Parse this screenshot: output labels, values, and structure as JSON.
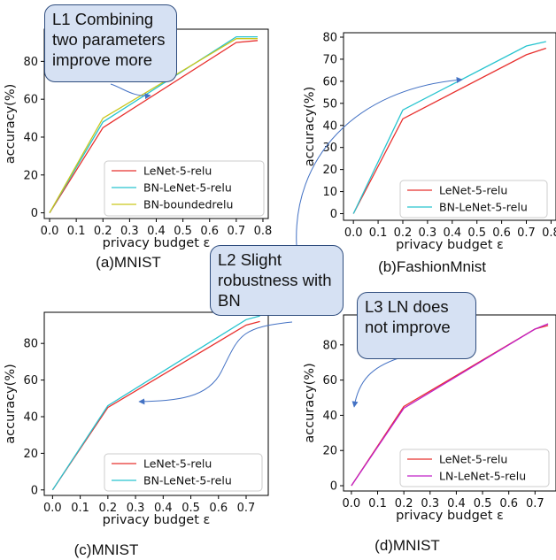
{
  "colors": {
    "lenet": "#e8312f",
    "bn_lenet": "#27c4cf",
    "bn_bounded": "#c9c61c",
    "ln_lenet": "#c020c8",
    "callout_fill": "#d6e1f3",
    "callout_border": "#2f4d7e",
    "arrow": "#4472c4"
  },
  "callouts": {
    "l1": "L1 Combining two parameters improve more",
    "l2": "L2 Slight robustness with BN",
    "l3": "L3 LN does not improve"
  },
  "chart_data": [
    {
      "id": "a",
      "type": "line",
      "caption": "(a)MNIST",
      "xlabel": "privacy budget ε",
      "ylabel": "accuracy(%)",
      "xlim": [
        -0.02,
        0.82
      ],
      "ylim": [
        -3,
        97
      ],
      "xticks": [
        "0.0",
        "0.1",
        "0.2",
        "0.3",
        "0.4",
        "0.5",
        "0.6",
        "0.7",
        "0.8"
      ],
      "xtick_values": [
        0,
        0.1,
        0.2,
        0.3,
        0.4,
        0.5,
        0.6,
        0.7,
        0.8
      ],
      "yticks": [
        "0",
        "20",
        "40",
        "60",
        "80"
      ],
      "ytick_values": [
        0,
        20,
        40,
        60,
        80
      ],
      "legend_position": "lower-right",
      "series": [
        {
          "name": "LeNet-5-relu",
          "color": "lenet",
          "x": [
            0,
            0.2,
            0.7,
            0.78
          ],
          "y": [
            0,
            45,
            90,
            91
          ]
        },
        {
          "name": "BN-LeNet-5-relu",
          "color": "bn_lenet",
          "x": [
            0,
            0.2,
            0.7,
            0.78
          ],
          "y": [
            0,
            48,
            93,
            93
          ]
        },
        {
          "name": "BN-boundedrelu",
          "color": "bn_bounded",
          "x": [
            0,
            0.2,
            0.7,
            0.78
          ],
          "y": [
            0,
            50,
            92,
            92
          ]
        }
      ]
    },
    {
      "id": "b",
      "type": "line",
      "caption": "(b)FashionMnist",
      "xlabel": "privacy budget ε",
      "ylabel": "accuracy(%)",
      "xlim": [
        -0.04,
        0.82
      ],
      "ylim": [
        -3,
        82
      ],
      "xticks": [
        "0.0",
        "0.1",
        "0.2",
        "0.3",
        "0.4",
        "0.5",
        "0.6",
        "0.7",
        "0.8"
      ],
      "xtick_values": [
        0,
        0.1,
        0.2,
        0.3,
        0.4,
        0.5,
        0.6,
        0.7,
        0.8
      ],
      "yticks": [
        "0",
        "10",
        "20",
        "30",
        "40",
        "50",
        "60",
        "70",
        "80"
      ],
      "ytick_values": [
        0,
        10,
        20,
        30,
        40,
        50,
        60,
        70,
        80
      ],
      "legend_position": "lower-right",
      "series": [
        {
          "name": "LeNet-5-relu",
          "color": "lenet",
          "x": [
            0,
            0.2,
            0.7,
            0.78
          ],
          "y": [
            0,
            43,
            72,
            75
          ]
        },
        {
          "name": "BN-LeNet-5-relu",
          "color": "bn_lenet",
          "x": [
            0,
            0.2,
            0.7,
            0.78
          ],
          "y": [
            0,
            47,
            76,
            78
          ]
        }
      ]
    },
    {
      "id": "c",
      "type": "line",
      "caption": "(c)MNIST",
      "xlabel": "privacy budget ε",
      "ylabel": "accuracy(%)",
      "xlim": [
        -0.03,
        0.78
      ],
      "ylim": [
        -3,
        97
      ],
      "xticks": [
        "0.0",
        "0.1",
        "0.2",
        "0.3",
        "0.4",
        "0.5",
        "0.6",
        "0.7"
      ],
      "xtick_values": [
        0,
        0.1,
        0.2,
        0.3,
        0.4,
        0.5,
        0.6,
        0.7
      ],
      "yticks": [
        "0",
        "20",
        "40",
        "60",
        "80"
      ],
      "ytick_values": [
        0,
        20,
        40,
        60,
        80
      ],
      "legend_position": "lower-right",
      "series": [
        {
          "name": "LeNet-5-relu",
          "color": "lenet",
          "x": [
            0,
            0.2,
            0.7,
            0.75
          ],
          "y": [
            0,
            45,
            90,
            92
          ]
        },
        {
          "name": "BN-LeNet-5-relu",
          "color": "bn_lenet",
          "x": [
            0,
            0.2,
            0.7,
            0.75
          ],
          "y": [
            0,
            46,
            93,
            95
          ]
        }
      ]
    },
    {
      "id": "d",
      "type": "line",
      "caption": "(d)MNIST",
      "xlabel": "privacy budget ε",
      "ylabel": "accuracy(%)",
      "xlim": [
        -0.03,
        0.78
      ],
      "ylim": [
        -3,
        97
      ],
      "xticks": [
        "0.0",
        "0.1",
        "0.2",
        "0.3",
        "0.4",
        "0.5",
        "0.6",
        "0.7"
      ],
      "xtick_values": [
        0,
        0.1,
        0.2,
        0.3,
        0.4,
        0.5,
        0.6,
        0.7
      ],
      "yticks": [
        "0",
        "20",
        "40",
        "60",
        "80"
      ],
      "ytick_values": [
        0,
        20,
        40,
        60,
        80
      ],
      "legend_position": "lower-right",
      "series": [
        {
          "name": "LeNet-5-relu",
          "color": "lenet",
          "x": [
            0,
            0.2,
            0.7,
            0.75
          ],
          "y": [
            0,
            45,
            89,
            91
          ]
        },
        {
          "name": "LN-LeNet-5-relu",
          "color": "ln_lenet",
          "x": [
            0,
            0.2,
            0.7,
            0.75
          ],
          "y": [
            0,
            44,
            89,
            92
          ]
        }
      ]
    }
  ]
}
